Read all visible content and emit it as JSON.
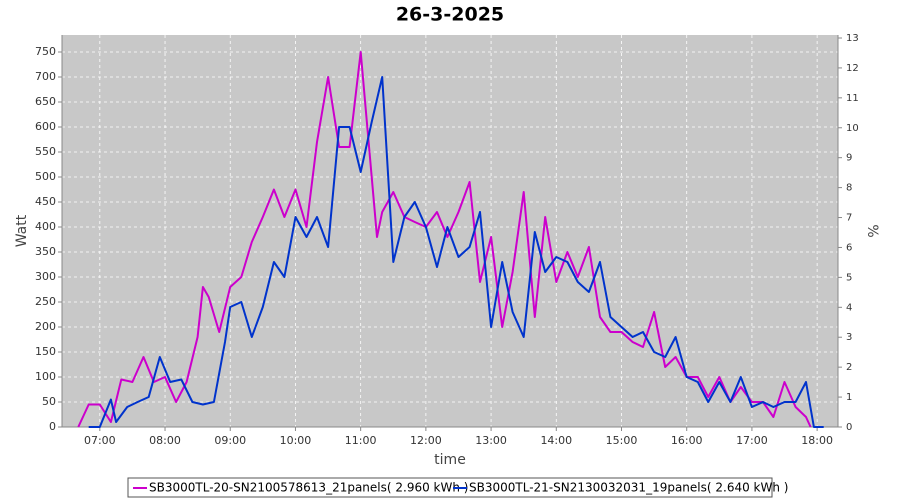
{
  "chart_data": {
    "type": "line",
    "title": "26-3-2025",
    "x_label": "time",
    "y_label": "Watt",
    "y2_label": "%",
    "xlim": [
      6.42,
      18.32
    ],
    "xticks": [
      {
        "value": 7,
        "label": "07:00"
      },
      {
        "value": 8,
        "label": "08:00"
      },
      {
        "value": 9,
        "label": "09:00"
      },
      {
        "value": 10,
        "label": "10:00"
      },
      {
        "value": 11,
        "label": "11:00"
      },
      {
        "value": 12,
        "label": "12:00"
      },
      {
        "value": 13,
        "label": "13:00"
      },
      {
        "value": 14,
        "label": "14:00"
      },
      {
        "value": 15,
        "label": "15:00"
      },
      {
        "value": 16,
        "label": "16:00"
      },
      {
        "value": 17,
        "label": "17:00"
      },
      {
        "value": 18,
        "label": "18:00"
      }
    ],
    "ylim": [
      0,
      784
    ],
    "yticks": [
      0,
      50,
      100,
      150,
      200,
      250,
      300,
      350,
      400,
      450,
      500,
      550,
      600,
      650,
      700,
      750
    ],
    "y2lim": [
      0,
      13.1
    ],
    "y2ticks": [
      0,
      1,
      2,
      3,
      4,
      5,
      6,
      7,
      8,
      9,
      10,
      11,
      12,
      13
    ],
    "grid": true,
    "legend": "bottom",
    "series": [
      {
        "name": "SB3000TL-20-SN2100578613_21panels( 2.960 kWh )",
        "color": "#cc00cc",
        "x": [
          6.67,
          6.83,
          7.0,
          7.17,
          7.33,
          7.5,
          7.67,
          7.83,
          8.0,
          8.17,
          8.33,
          8.5,
          8.58,
          8.67,
          8.83,
          9.0,
          9.17,
          9.33,
          9.5,
          9.67,
          9.83,
          10.0,
          10.17,
          10.33,
          10.5,
          10.67,
          10.83,
          11.0,
          11.17,
          11.25,
          11.33,
          11.5,
          11.67,
          11.83,
          12.0,
          12.17,
          12.33,
          12.5,
          12.67,
          12.83,
          13.0,
          13.17,
          13.33,
          13.5,
          13.67,
          13.83,
          14.0,
          14.17,
          14.33,
          14.5,
          14.67,
          14.83,
          15.0,
          15.17,
          15.33,
          15.5,
          15.67,
          15.83,
          16.0,
          16.17,
          16.33,
          16.5,
          16.67,
          16.83,
          17.0,
          17.17,
          17.33,
          17.5,
          17.67,
          17.83,
          17.9
        ],
        "values": [
          0,
          45,
          45,
          10,
          95,
          90,
          140,
          90,
          100,
          50,
          90,
          180,
          280,
          260,
          190,
          280,
          300,
          370,
          420,
          475,
          420,
          475,
          400,
          570,
          700,
          560,
          560,
          750,
          500,
          380,
          430,
          470,
          420,
          410,
          400,
          430,
          380,
          430,
          490,
          290,
          380,
          200,
          310,
          470,
          220,
          420,
          290,
          350,
          300,
          360,
          220,
          190,
          190,
          170,
          160,
          230,
          120,
          140,
          100,
          100,
          60,
          100,
          50,
          80,
          50,
          50,
          20,
          90,
          40,
          20,
          0
        ]
      },
      {
        "name": "SB3000TL-21-SN2130032031_19panels( 2.640 kWh )",
        "color": "#0033cc",
        "x": [
          6.83,
          7.0,
          7.17,
          7.25,
          7.42,
          7.58,
          7.75,
          7.92,
          8.08,
          8.25,
          8.42,
          8.58,
          8.75,
          8.92,
          9.0,
          9.17,
          9.33,
          9.5,
          9.67,
          9.83,
          10.0,
          10.17,
          10.33,
          10.5,
          10.67,
          10.83,
          11.0,
          11.17,
          11.33,
          11.5,
          11.67,
          11.83,
          12.0,
          12.17,
          12.33,
          12.5,
          12.67,
          12.83,
          13.0,
          13.17,
          13.33,
          13.5,
          13.67,
          13.83,
          14.0,
          14.17,
          14.33,
          14.5,
          14.67,
          14.83,
          15.0,
          15.17,
          15.33,
          15.5,
          15.67,
          15.83,
          16.0,
          16.17,
          16.33,
          16.5,
          16.67,
          16.83,
          17.0,
          17.17,
          17.33,
          17.5,
          17.67,
          17.83,
          17.95,
          18.1
        ],
        "values": [
          0,
          0,
          55,
          10,
          40,
          50,
          60,
          140,
          90,
          95,
          50,
          45,
          50,
          170,
          240,
          250,
          180,
          240,
          330,
          300,
          420,
          380,
          420,
          360,
          600,
          600,
          510,
          610,
          700,
          330,
          420,
          450,
          400,
          320,
          400,
          340,
          360,
          430,
          200,
          330,
          230,
          180,
          390,
          310,
          340,
          330,
          290,
          270,
          330,
          220,
          200,
          180,
          190,
          150,
          140,
          180,
          100,
          90,
          50,
          90,
          50,
          100,
          40,
          50,
          40,
          50,
          50,
          90,
          0,
          0
        ]
      }
    ]
  }
}
